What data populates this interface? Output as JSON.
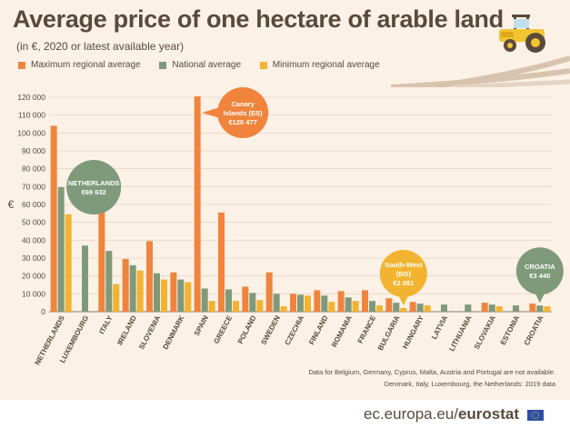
{
  "title": "Average price of one hectare of arable land",
  "subtitle": "(in €, 2020 or latest available year)",
  "legend": [
    {
      "label": "Maximum regional average",
      "color": "#f0843c"
    },
    {
      "label": "National average",
      "color": "#7f9a7a"
    },
    {
      "label": "Minimum regional average",
      "color": "#f2b430"
    }
  ],
  "notes": {
    "line1": "Data for Belgium, Germany, Cyprus, Malta, Austria and Portugal are not available.",
    "line2": "Denmark, Italy, Luxembourg, the Netherlands: 2019 data"
  },
  "brand": {
    "prefix": "ec.europa.eu/",
    "name": "eurostat"
  },
  "chart_data": {
    "type": "bar",
    "ylabel": "€",
    "ylim": [
      0,
      120000
    ],
    "yticks": [
      0,
      10000,
      20000,
      30000,
      40000,
      50000,
      60000,
      70000,
      80000,
      90000,
      100000,
      110000,
      120000
    ],
    "ytick_labels": [
      "0",
      "10 000",
      "20 000",
      "30 000",
      "40 000",
      "50 000",
      "60 000",
      "70 000",
      "80 000",
      "90 000",
      "100 000",
      "110 000",
      "120 000"
    ],
    "categories": [
      "NETHERLANDS",
      "LUXEMBOURG",
      "ITALY",
      "IRELAND",
      "SLOVENIA",
      "DENMARK",
      "SPAIN",
      "GREECE",
      "POLAND",
      "SWEDEN",
      "CZECHIA",
      "FINLAND",
      "ROMANIA",
      "FRANCE",
      "BULGARIA",
      "HUNGARY",
      "LATVIA",
      "LITHUANIA",
      "SLOVAKIA",
      "ESTONIA",
      "CROATIA"
    ],
    "series": [
      {
        "name": "Maximum regional average",
        "color": "#f0843c",
        "values": [
          104000,
          null,
          59500,
          29500,
          39500,
          22000,
          120477,
          55500,
          14000,
          22000,
          10000,
          12000,
          11500,
          12000,
          7500,
          5500,
          null,
          null,
          5000,
          null,
          4500
        ]
      },
      {
        "name": "National average",
        "color": "#7f9a7a",
        "values": [
          69632,
          37000,
          34000,
          26000,
          21500,
          18000,
          13000,
          12500,
          10500,
          10000,
          9500,
          9000,
          8000,
          6000,
          5000,
          4500,
          4000,
          4000,
          4000,
          3500,
          3440
        ]
      },
      {
        "name": "Minimum regional average",
        "color": "#f2b430",
        "values": [
          54500,
          null,
          15500,
          23000,
          18000,
          16500,
          6000,
          6000,
          6500,
          3000,
          9000,
          5500,
          6000,
          3500,
          2051,
          3500,
          null,
          null,
          3000,
          null,
          3000
        ]
      }
    ],
    "annotations": [
      {
        "category": "NETHERLANDS",
        "series": "National average",
        "lines": [
          "NETHERLANDS",
          "€69 632"
        ],
        "color": "#7f9a7a"
      },
      {
        "category": "SPAIN",
        "series": "Maximum regional average",
        "lines": [
          "Canary",
          "Islands (ES)",
          "€120 477"
        ],
        "color": "#f0843c"
      },
      {
        "category": "BULGARIA",
        "series": "Minimum regional average",
        "lines": [
          "South-West",
          "(BG)",
          "€2 051"
        ],
        "color": "#f2b430"
      },
      {
        "category": "CROATIA",
        "series": "National average",
        "lines": [
          "CROATIA",
          "€3 440"
        ],
        "color": "#7f9a7a"
      }
    ]
  }
}
